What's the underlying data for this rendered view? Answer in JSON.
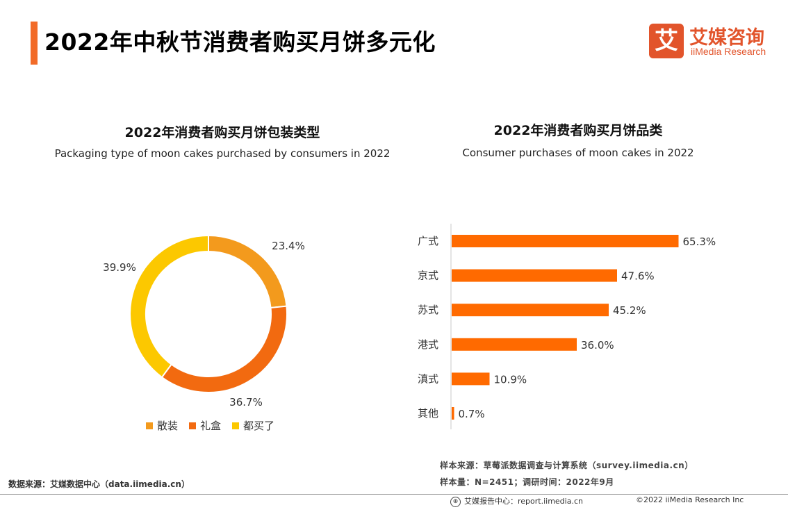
{
  "header": {
    "title": "2022年中秋节消费者购买月饼多元化",
    "logo_cn": "艾媒咨询",
    "logo_en": "iiMedia Research",
    "logo_mark": "艾"
  },
  "chart_data": [
    {
      "type": "pie",
      "style": "donut",
      "title": "2022年消费者购买月饼包装类型",
      "subtitle": "Packaging type of moon cakes purchased by consumers in 2022",
      "slices": [
        {
          "name": "散装",
          "value": 23.4,
          "label": "23.4%",
          "color": "#f39a1d"
        },
        {
          "name": "礼盒",
          "value": 36.7,
          "label": "36.7%",
          "color": "#f26a10"
        },
        {
          "name": "都买了",
          "value": 39.9,
          "label": "39.9%",
          "color": "#fcc800"
        }
      ],
      "legend_position": "bottom"
    },
    {
      "type": "bar",
      "orientation": "horizontal",
      "title": "2022年消费者购买月饼品类",
      "subtitle": "Consumer purchases of moon cakes in 2022",
      "categories": [
        "广式",
        "京式",
        "苏式",
        "港式",
        "滇式",
        "其他"
      ],
      "values": [
        65.3,
        47.6,
        45.2,
        36.0,
        10.9,
        0.7
      ],
      "labels": [
        "65.3%",
        "47.6%",
        "45.2%",
        "36.0%",
        "10.9%",
        "0.7%"
      ],
      "xlim": [
        0,
        70
      ],
      "color": "#ff6a00",
      "grid": false
    }
  ],
  "footer": {
    "source_left": "数据来源：艾媒数据中心（data.iimedia.cn）",
    "sample_source": "样本来源：草莓派数据调查与计算系统（survey.iimedia.cn）",
    "sample_size": "样本量：N=2451；调研时间：2022年9月",
    "report_center": "艾媒报告中心：report.iimedia.cn",
    "copyright": "©2022  iiMedia Research  Inc"
  }
}
